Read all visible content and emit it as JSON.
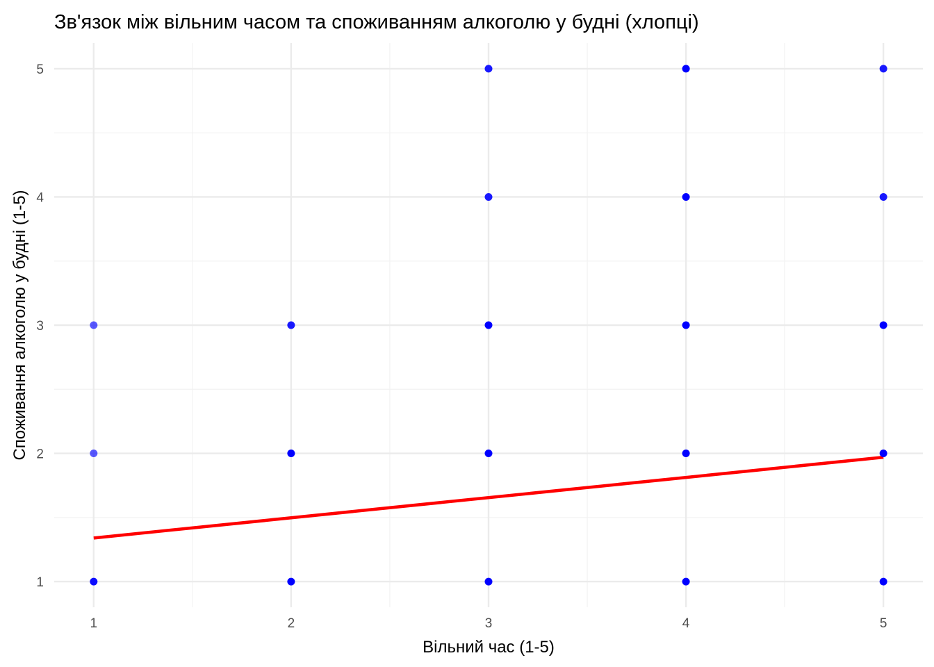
{
  "chart_data": {
    "type": "scatter",
    "title": "Зв'язок між вільним часом та споживанням алкоголю у будні (хлопці)",
    "xlabel": "Вільний час (1-5)",
    "ylabel": "Споживання алкоголю у будні (1-5)",
    "xlim": [
      0.8,
      5.2
    ],
    "ylim": [
      0.8,
      5.2
    ],
    "x_ticks": [
      "1",
      "2",
      "3",
      "4",
      "5"
    ],
    "y_ticks": [
      "1",
      "2",
      "3",
      "4",
      "5"
    ],
    "grid": true,
    "points": [
      {
        "x": 1,
        "y": 1,
        "opacity": 0.95
      },
      {
        "x": 1,
        "y": 2,
        "opacity": 0.65
      },
      {
        "x": 1,
        "y": 3,
        "opacity": 0.65
      },
      {
        "x": 2,
        "y": 1,
        "opacity": 1.0
      },
      {
        "x": 2,
        "y": 2,
        "opacity": 1.0
      },
      {
        "x": 2,
        "y": 3,
        "opacity": 0.9
      },
      {
        "x": 3,
        "y": 1,
        "opacity": 1.0
      },
      {
        "x": 3,
        "y": 2,
        "opacity": 1.0
      },
      {
        "x": 3,
        "y": 3,
        "opacity": 1.0
      },
      {
        "x": 3,
        "y": 4,
        "opacity": 0.9
      },
      {
        "x": 3,
        "y": 5,
        "opacity": 0.9
      },
      {
        "x": 4,
        "y": 1,
        "opacity": 1.0
      },
      {
        "x": 4,
        "y": 2,
        "opacity": 1.0
      },
      {
        "x": 4,
        "y": 3,
        "opacity": 1.0
      },
      {
        "x": 4,
        "y": 4,
        "opacity": 1.0
      },
      {
        "x": 4,
        "y": 5,
        "opacity": 1.0
      },
      {
        "x": 5,
        "y": 1,
        "opacity": 1.0
      },
      {
        "x": 5,
        "y": 2,
        "opacity": 1.0
      },
      {
        "x": 5,
        "y": 3,
        "opacity": 1.0
      },
      {
        "x": 5,
        "y": 4,
        "opacity": 0.9
      },
      {
        "x": 5,
        "y": 5,
        "opacity": 0.9
      }
    ],
    "trend_line": {
      "x": [
        1,
        5
      ],
      "y": [
        1.34,
        1.97
      ]
    },
    "colors": {
      "points": "#0000ff",
      "trend": "#ff0000",
      "grid_major": "#ebebeb",
      "grid_minor": "#f2f2f2",
      "tick_text": "#4d4d4d",
      "text": "#000000"
    }
  }
}
